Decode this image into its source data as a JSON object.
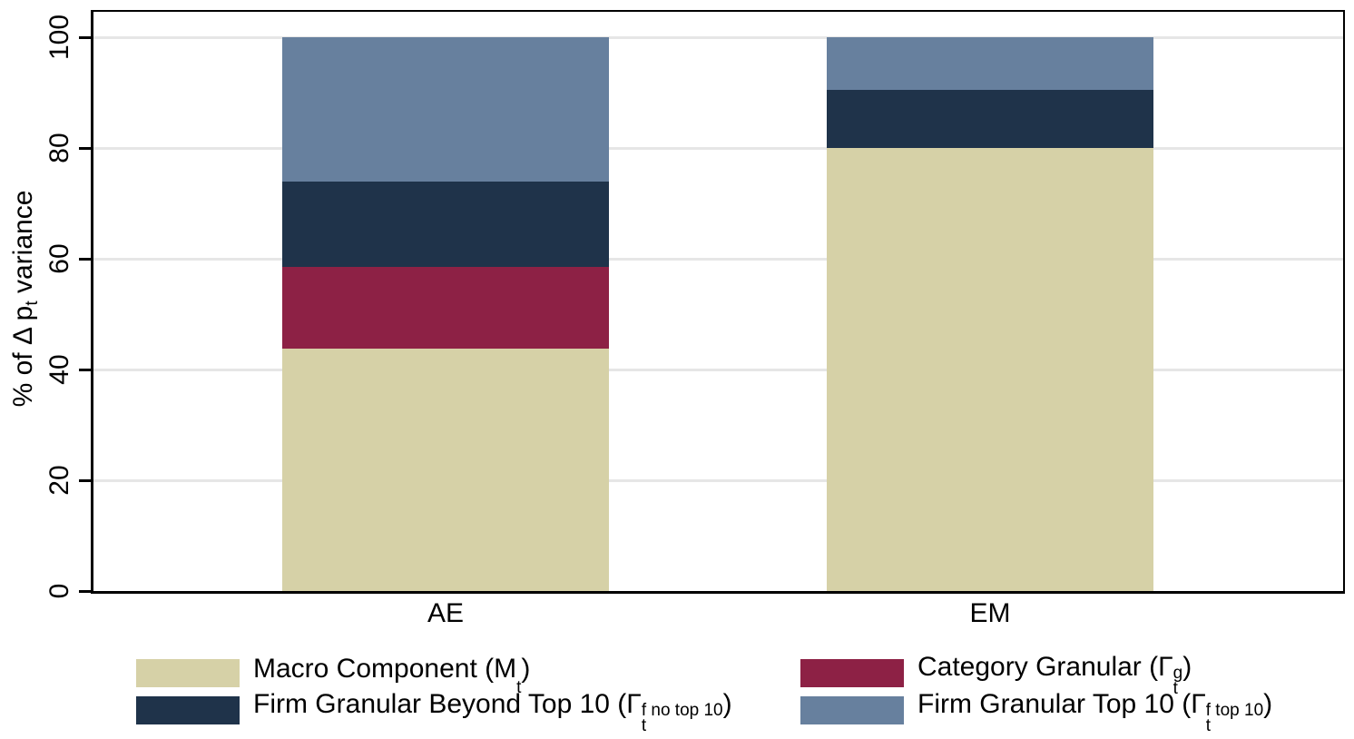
{
  "figure": {
    "y_axis": {
      "title_pre": "% of Δ p",
      "title_sub": "t",
      "title_post": " variance",
      "tick_labels": [
        "0",
        "20",
        "40",
        "60",
        "80",
        "100"
      ]
    },
    "x_axis": {
      "labels": [
        "AE",
        "EM"
      ]
    },
    "legend": {
      "items": [
        {
          "name": "macro-component",
          "pre": "Macro Component (M",
          "sup": "",
          "sub": "t",
          "post": ")"
        },
        {
          "name": "category-granular",
          "pre": "Category Granular (Γ",
          "sup": "g",
          "sub": "t",
          "post": ")"
        },
        {
          "name": "firm-granular-beyond-top10",
          "pre": "Firm Granular Beyond Top 10 (Γ",
          "sup": "f no top 10",
          "sub": "t",
          "post": ")"
        },
        {
          "name": "firm-granular-top10",
          "pre": "Firm Granular Top 10 (Γ",
          "sup": "f top 10",
          "sub": "t",
          "post": ")"
        }
      ]
    }
  },
  "chart_data": {
    "type": "bar",
    "stacked": true,
    "title": "",
    "categories": [
      "AE",
      "EM"
    ],
    "series": [
      {
        "name": "Macro Component (M_t)",
        "color": "#d6d1a7",
        "values": [
          43.7,
          80.0
        ]
      },
      {
        "name": "Category Granular (Gamma_t^g)",
        "color": "#8d2145",
        "values": [
          14.9,
          0.0
        ]
      },
      {
        "name": "Firm Granular Beyond Top 10 (Gamma_t^f no top 10)",
        "color": "#1f334a",
        "values": [
          15.4,
          10.5
        ]
      },
      {
        "name": "Firm Granular Top 10 (Gamma_t^f top 10)",
        "color": "#67809e",
        "values": [
          26.0,
          9.5
        ]
      }
    ],
    "xlabel": "",
    "ylabel": "% of Δ p_t variance",
    "yticks": [
      0,
      20,
      40,
      60,
      80,
      100
    ],
    "ylim": [
      0,
      104.6
    ],
    "grid": true,
    "gridcolor": "#e6e6e6",
    "axis_color": "#000000",
    "legend_position": "bottom"
  }
}
